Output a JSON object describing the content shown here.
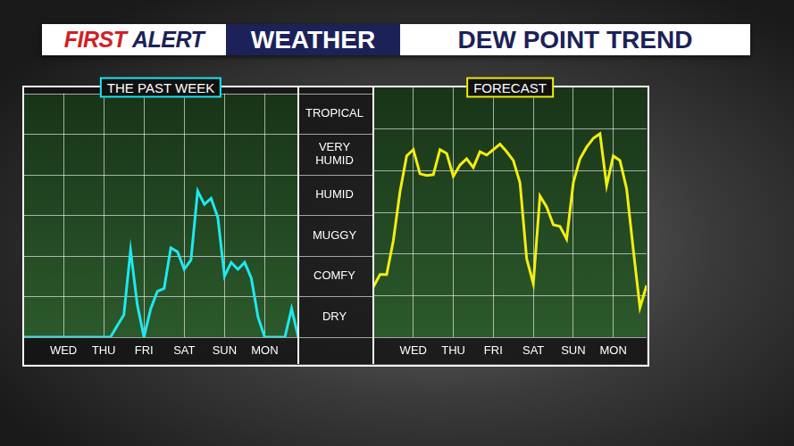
{
  "header": {
    "brand": "FIRST ALERT",
    "section": "WEATHER",
    "title": "DEW POINT TREND"
  },
  "chart_data": [
    {
      "type": "line",
      "title": "THE PAST WEEK",
      "color": "#1fe8f0",
      "categories": [
        null,
        null,
        null,
        null,
        null,
        null,
        "WED",
        null,
        null,
        null,
        null,
        null,
        "THU",
        null,
        null,
        null,
        null,
        null,
        "FRI",
        null,
        null,
        null,
        null,
        null,
        "SAT",
        null,
        null,
        null,
        null,
        null,
        "SUN",
        null,
        null,
        null,
        null,
        null,
        "MON",
        null,
        null,
        null,
        null,
        null
      ],
      "values": [
        0,
        0,
        0,
        0,
        0,
        0,
        0,
        0,
        0,
        0,
        0,
        0,
        0,
        0,
        0.28,
        0.55,
        2.14,
        0.8,
        0,
        0.7,
        1.13,
        1.2,
        2.2,
        2.1,
        1.67,
        1.9,
        3.6,
        3.27,
        3.42,
        2.95,
        1.5,
        1.84,
        1.67,
        1.84,
        1.45,
        0.49,
        0,
        0,
        0,
        0,
        0.7,
        0
      ],
      "ylim": [
        0,
        6
      ],
      "yticks": [
        {
          "value": 0.5,
          "label": "DRY"
        },
        {
          "value": 1.5,
          "label": "COMFY"
        },
        {
          "value": 2.5,
          "label": "MUGGY"
        },
        {
          "value": 3.5,
          "label": "HUMID"
        },
        {
          "value": 4.5,
          "label": "VERY HUMID"
        },
        {
          "value": 5.5,
          "label": "TROPICAL"
        }
      ],
      "grid": true
    },
    {
      "type": "line",
      "title": "FORECAST",
      "color": "#f2ee12",
      "categories": [
        null,
        null,
        null,
        null,
        null,
        null,
        "WED",
        null,
        null,
        null,
        null,
        null,
        "THU",
        null,
        null,
        null,
        null,
        null,
        "FRI",
        null,
        null,
        null,
        null,
        null,
        "SAT",
        null,
        null,
        null,
        null,
        null,
        "SUN",
        null,
        null,
        null,
        null,
        null,
        "MON",
        null,
        null,
        null,
        null,
        null
      ],
      "values": [
        1.2,
        1.5,
        1.5,
        2.31,
        3.48,
        4.34,
        4.49,
        3.91,
        3.87,
        3.89,
        4.49,
        4.4,
        3.85,
        4.12,
        4.27,
        4.06,
        4.44,
        4.36,
        4.49,
        4.62,
        4.44,
        4.23,
        3.7,
        1.88,
        1.28,
        3.38,
        3.12,
        2.69,
        2.65,
        2.35,
        3.7,
        4.27,
        4.55,
        4.76,
        4.87,
        3.63,
        4.34,
        4.23,
        3.55,
        2.09,
        0.71,
        1.24
      ],
      "ylim": [
        0,
        6
      ],
      "yticks": [
        {
          "value": 0.5,
          "label": "DRY"
        },
        {
          "value": 1.5,
          "label": "COMFY"
        },
        {
          "value": 2.5,
          "label": "MUGGY"
        },
        {
          "value": 3.5,
          "label": "HUMID"
        },
        {
          "value": 4.5,
          "label": "VERY HUMID"
        },
        {
          "value": 5.5,
          "label": "TROPICAL"
        }
      ],
      "grid": true,
      "tick_labels": "x"
    }
  ]
}
